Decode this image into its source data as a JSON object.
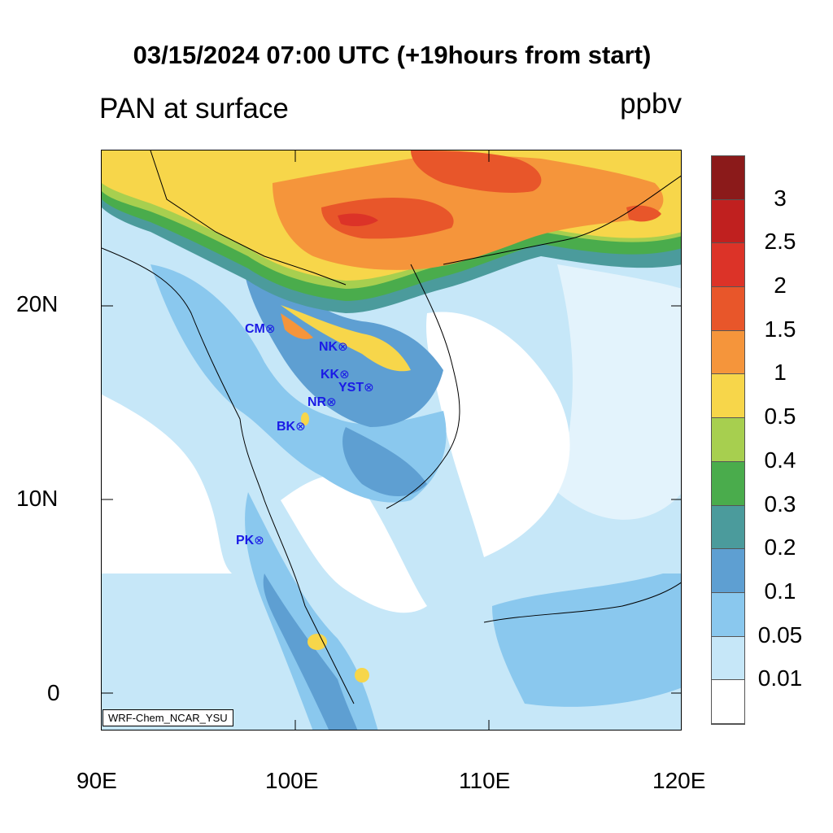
{
  "title": "03/15/2024 07:00 UTC (+19hours from start)",
  "subtitle": "PAN at surface",
  "units": "ppbv",
  "credit": "WRF-Chem_NCAR_YSU",
  "x_axis_labels": [
    "90E",
    "100E",
    "110E",
    "120E"
  ],
  "y_axis_labels": [
    "20N",
    "10N",
    "0"
  ],
  "colorbar": {
    "levels": [
      "3",
      "2.5",
      "2",
      "1.5",
      "1",
      "0.5",
      "0.4",
      "0.3",
      "0.2",
      "0.1",
      "0.05",
      "0.01"
    ],
    "colors": [
      "#8b1a1a",
      "#c0201f",
      "#dc3328",
      "#e8562a",
      "#f5953b",
      "#f7d64a",
      "#a7cf4f",
      "#4aac4c",
      "#4b9b9c",
      "#5e9fd2",
      "#8ac8ee",
      "#c6e7f8",
      "#ffffff"
    ]
  },
  "stations": [
    {
      "code": "CM"
    },
    {
      "code": "NK"
    },
    {
      "code": "KK"
    },
    {
      "code": "YST"
    },
    {
      "code": "NR"
    },
    {
      "code": "BK"
    },
    {
      "code": "PK"
    }
  ],
  "station_marker": "⊗"
}
